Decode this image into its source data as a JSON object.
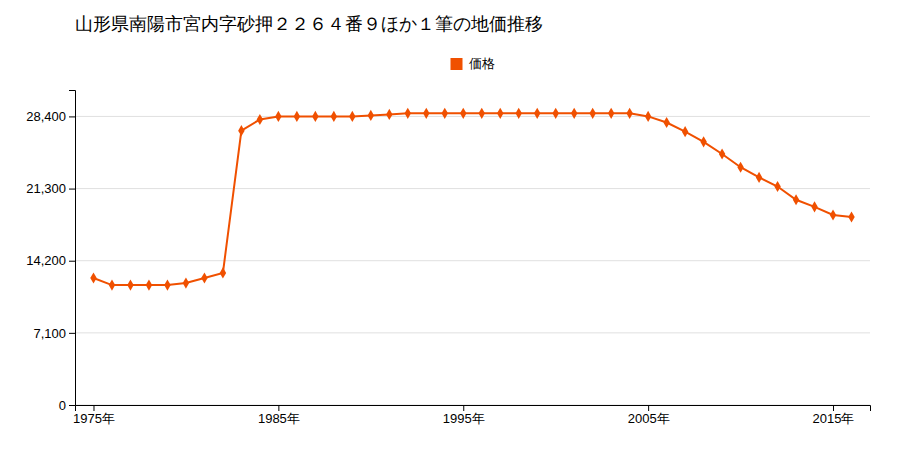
{
  "chart_data": {
    "type": "line",
    "title": "山形県南陽市宮内字砂押２２６４番９ほか１筆の地価推移",
    "x": [
      1975,
      1976,
      1977,
      1978,
      1979,
      1980,
      1981,
      1982,
      1983,
      1984,
      1985,
      1986,
      1987,
      1988,
      1989,
      1990,
      1991,
      1992,
      1993,
      1994,
      1995,
      1996,
      1997,
      1998,
      1999,
      2000,
      2001,
      2002,
      2003,
      2004,
      2005,
      2006,
      2007,
      2008,
      2009,
      2010,
      2011,
      2012,
      2013,
      2014,
      2015,
      2016
    ],
    "series": [
      {
        "name": "価格",
        "color": "#f05000",
        "marker": "diamond",
        "values": [
          12500,
          11800,
          11800,
          11800,
          11800,
          12000,
          12500,
          13000,
          27000,
          28100,
          28400,
          28400,
          28400,
          28400,
          28400,
          28500,
          28600,
          28700,
          28700,
          28700,
          28700,
          28700,
          28700,
          28700,
          28700,
          28700,
          28700,
          28700,
          28700,
          28700,
          28400,
          27800,
          26900,
          25900,
          24700,
          23400,
          22400,
          21500,
          20200,
          19500,
          18700,
          18500
        ]
      }
    ],
    "xlim": [
      1974,
      2017
    ],
    "xticks": [
      {
        "value": 1975,
        "label": "1975年"
      },
      {
        "value": 1985,
        "label": "1985年"
      },
      {
        "value": 1995,
        "label": "1995年"
      },
      {
        "value": 2005,
        "label": "2005年"
      },
      {
        "value": 2015,
        "label": "2015年"
      }
    ],
    "ylim": [
      0,
      31000
    ],
    "yticks": [
      0,
      {
        "value": 7100,
        "label": "7,100"
      },
      {
        "value": 14200,
        "label": "14,200"
      },
      {
        "value": 21300,
        "label": "21,300"
      },
      {
        "value": 28400,
        "label": "28,400"
      }
    ],
    "grid": true,
    "legend": "top"
  }
}
